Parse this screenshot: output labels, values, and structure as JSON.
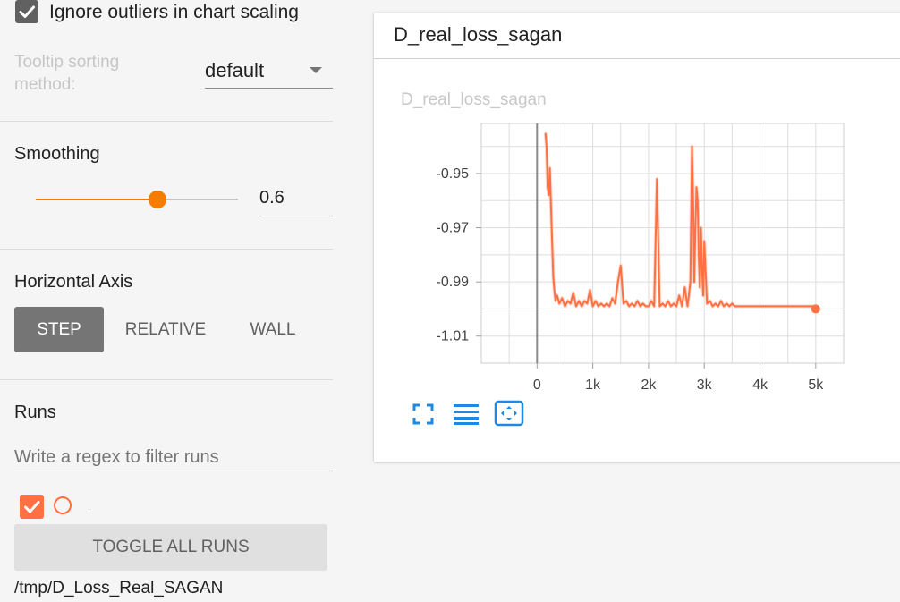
{
  "sidebar": {
    "ignore_outliers": {
      "label": "Ignore outliers in chart scaling",
      "checked": true
    },
    "tooltip_sorting": {
      "label": "Tooltip sorting method:",
      "value": "default"
    },
    "smoothing": {
      "title": "Smoothing",
      "value": "0.6",
      "fraction": 0.6
    },
    "horizontal_axis": {
      "title": "Horizontal Axis",
      "options": [
        "STEP",
        "RELATIVE",
        "WALL"
      ],
      "selected": "STEP"
    },
    "runs": {
      "title": "Runs",
      "filter_placeholder": "Write a regex to filter runs",
      "run_label": ".",
      "toggle_label": "TOGGLE ALL RUNS",
      "path": "/tmp/D_Loss_Real_SAGAN"
    }
  },
  "card": {
    "title": "D_real_loss_sagan",
    "icons": [
      "fullscreen-icon",
      "data-table-icon",
      "fit-domain-icon"
    ]
  },
  "colors": {
    "accent": "#f57c00",
    "series": "#ff7043",
    "step_button": "#757575"
  },
  "chart_data": {
    "type": "line",
    "title": "D_real_loss_sagan",
    "xlabel": "",
    "ylabel": "",
    "xlim": [
      -1000,
      5500
    ],
    "ylim": [
      -1.02,
      -0.9315
    ],
    "x_ticks": [
      0,
      1000,
      2000,
      3000,
      4000,
      5000
    ],
    "x_tick_labels": [
      "0",
      "1k",
      "2k",
      "3k",
      "4k",
      "5k"
    ],
    "y_ticks": [
      -0.95,
      -0.97,
      -0.99,
      -1.01
    ],
    "y_tick_labels": [
      "-0.95",
      "-0.97",
      "-0.99",
      "-1.01"
    ],
    "grid": true,
    "series": [
      {
        "smoothed": true,
        "x": [
          150,
          170,
          190,
          210,
          230,
          250,
          270,
          290,
          310,
          330,
          360,
          400,
          450,
          500,
          550,
          600,
          650,
          700,
          750,
          800,
          850,
          900,
          950,
          1000,
          1050,
          1100,
          1150,
          1200,
          1250,
          1300,
          1350,
          1400,
          1450,
          1500,
          1550,
          1600,
          1650,
          1700,
          1750,
          1800,
          1850,
          1900,
          1950,
          2000,
          2050,
          2100,
          2150,
          2200,
          2250,
          2300,
          2350,
          2400,
          2450,
          2500,
          2550,
          2600,
          2650,
          2700,
          2750,
          2780,
          2800,
          2820,
          2840,
          2860,
          2880,
          2900,
          2920,
          2940,
          2960,
          2980,
          3000,
          3050,
          3100,
          3150,
          3200,
          3250,
          3300,
          3350,
          3400,
          3450,
          3500,
          3550,
          3600,
          3650,
          3700,
          3800,
          4000,
          4500,
          5000
        ],
        "y": [
          -0.935,
          -0.94,
          -0.955,
          -0.958,
          -0.948,
          -0.962,
          -0.975,
          -0.988,
          -0.993,
          -0.997,
          -0.995,
          -0.998,
          -0.996,
          -0.999,
          -0.997,
          -0.998,
          -0.994,
          -0.999,
          -0.997,
          -0.999,
          -0.997,
          -0.998,
          -0.993,
          -0.999,
          -0.997,
          -0.999,
          -0.998,
          -0.999,
          -0.998,
          -0.999,
          -0.996,
          -0.998,
          -0.99,
          -0.984,
          -0.998,
          -0.997,
          -0.999,
          -0.998,
          -0.999,
          -0.997,
          -0.999,
          -0.998,
          -0.999,
          -0.999,
          -0.997,
          -0.999,
          -0.952,
          -0.999,
          -0.998,
          -0.999,
          -0.997,
          -0.999,
          -0.998,
          -0.999,
          -0.995,
          -0.999,
          -0.992,
          -0.999,
          -0.99,
          -0.94,
          -0.96,
          -0.99,
          -0.97,
          -0.955,
          -0.96,
          -0.98,
          -0.992,
          -0.97,
          -0.985,
          -0.995,
          -0.975,
          -0.998,
          -0.997,
          -0.999,
          -0.998,
          -0.999,
          -0.997,
          -0.999,
          -0.998,
          -0.999,
          -0.998,
          -0.999,
          -0.999,
          -0.999,
          -0.999,
          -0.999,
          -0.999,
          -0.999,
          -0.999
        ]
      }
    ],
    "last_point": {
      "x": 5000,
      "y": -1.0
    }
  }
}
